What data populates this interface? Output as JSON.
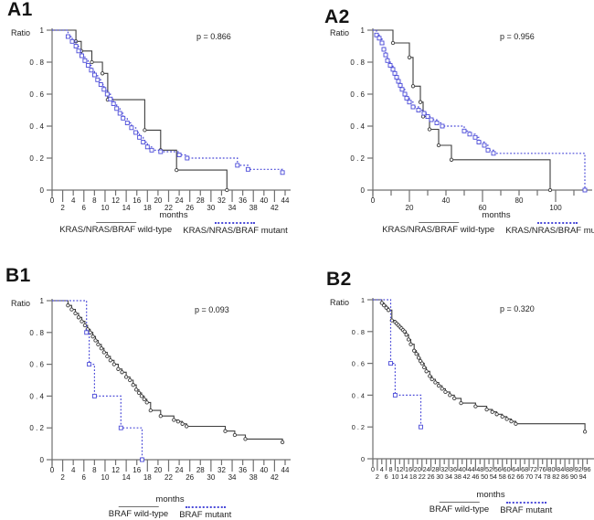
{
  "figure": {
    "background": "#ffffff",
    "curve_black": "#3d3d3d",
    "curve_blue": "#4a4ad8",
    "axis_color": "#707070"
  },
  "chart_data": [
    {
      "type": "line",
      "subtype": "kaplan-meier-step",
      "panel": "A1",
      "p_label": "p = 0.866",
      "ylabel": "Ratio",
      "xlabel": "months",
      "ylim": [
        0,
        1
      ],
      "xlim": [
        0,
        44
      ],
      "grid": false,
      "yticks": [
        {
          "v": 1,
          "label": "1"
        },
        {
          "v": 0.8,
          "label": "0 . 8"
        },
        {
          "v": 0.6,
          "label": "0 . 6"
        },
        {
          "v": 0.4,
          "label": "0 . 4"
        },
        {
          "v": 0.2,
          "label": "0 . 2"
        },
        {
          "v": 0,
          "label": "0"
        }
      ],
      "xticks": {
        "minor_step": 2,
        "minor_max": 44,
        "rows": [
          [
            0,
            4,
            8,
            12,
            16,
            20,
            24,
            28,
            32,
            36,
            40,
            44
          ],
          [
            2,
            6,
            10,
            14,
            18,
            22,
            26,
            30,
            34,
            38,
            42
          ]
        ]
      },
      "legend": [
        {
          "label": "KRAS/NRAS/BRAF wild-type",
          "style": "solid",
          "color": "#6f6f6f"
        },
        {
          "label": "KRAS/NRAS/BRAF mutant",
          "style": "dotted",
          "color": "#4a4ad8"
        }
      ],
      "series": [
        {
          "name": "KRAS/NRAS/BRAF wild-type",
          "style": "solid",
          "color": "#3d3d3d",
          "marker": "circle",
          "points": [
            [
              0,
              1
            ],
            [
              4.5,
              0.93
            ],
            [
              5.5,
              0.87
            ],
            [
              7.5,
              0.8
            ],
            [
              9.5,
              0.73
            ],
            [
              10.5,
              0.565
            ],
            [
              17.5,
              0.375
            ],
            [
              20.5,
              0.25
            ],
            [
              23.5,
              0.125
            ],
            [
              33,
              0
            ]
          ]
        },
        {
          "name": "KRAS/NRAS/BRAF mutant",
          "style": "dotted",
          "color": "#4a4ad8",
          "marker": "square",
          "points": [
            [
              0,
              1
            ],
            [
              3,
              0.96
            ],
            [
              3.8,
              0.93
            ],
            [
              4.5,
              0.9
            ],
            [
              5,
              0.87
            ],
            [
              5.6,
              0.84
            ],
            [
              6.2,
              0.81
            ],
            [
              6.8,
              0.78
            ],
            [
              7.4,
              0.75
            ],
            [
              8,
              0.72
            ],
            [
              8.6,
              0.69
            ],
            [
              9.2,
              0.66
            ],
            [
              9.8,
              0.63
            ],
            [
              10.4,
              0.6
            ],
            [
              11,
              0.57
            ],
            [
              11.6,
              0.54
            ],
            [
              12.2,
              0.51
            ],
            [
              12.8,
              0.48
            ],
            [
              13.4,
              0.45
            ],
            [
              14.2,
              0.42
            ],
            [
              15,
              0.39
            ],
            [
              15.8,
              0.36
            ],
            [
              16.5,
              0.33
            ],
            [
              17.2,
              0.3
            ],
            [
              18,
              0.27
            ],
            [
              18.8,
              0.25
            ],
            [
              20.5,
              0.24
            ],
            [
              24,
              0.22
            ],
            [
              25.5,
              0.2
            ],
            [
              35,
              0.155
            ],
            [
              37,
              0.13
            ],
            [
              43.5,
              0.11
            ]
          ]
        }
      ]
    },
    {
      "type": "line",
      "subtype": "kaplan-meier-step",
      "panel": "A2",
      "p_label": "p = 0.956",
      "ylabel": "Ratio",
      "xlabel": "months",
      "ylim": [
        0,
        1
      ],
      "xlim": [
        0,
        117
      ],
      "grid": false,
      "yticks": [
        {
          "v": 1,
          "label": "1"
        },
        {
          "v": 0.8,
          "label": "0 . 8"
        },
        {
          "v": 0.6,
          "label": "0 . 6"
        },
        {
          "v": 0.4,
          "label": "0 . 4"
        },
        {
          "v": 0.2,
          "label": "0 . 2"
        },
        {
          "v": 0,
          "label": "0"
        }
      ],
      "xticks": {
        "minor_step": 10,
        "minor_max": 110,
        "rows": [
          [
            0,
            40,
            80
          ],
          [
            20,
            60,
            100
          ]
        ]
      },
      "legend": [
        {
          "label": "KRAS/NRAS/BRAF wild-type",
          "style": "solid",
          "color": "#6f6f6f"
        },
        {
          "label": "KRAS/NRAS/BRAF mutant",
          "style": "dotted",
          "color": "#4a4ad8"
        }
      ],
      "series": [
        {
          "name": "KRAS/NRAS/BRAF wild-type",
          "style": "solid",
          "color": "#3d3d3d",
          "marker": "circle",
          "points": [
            [
              0,
              1
            ],
            [
              11,
              0.92
            ],
            [
              20,
              0.83
            ],
            [
              22,
              0.65
            ],
            [
              26,
              0.55
            ],
            [
              27.5,
              0.46
            ],
            [
              31,
              0.38
            ],
            [
              36,
              0.28
            ],
            [
              43,
              0.19
            ],
            [
              97,
              0
            ]
          ]
        },
        {
          "name": "KRAS/NRAS/BRAF mutant",
          "style": "dotted",
          "color": "#4a4ad8",
          "marker": "square",
          "points": [
            [
              0,
              1
            ],
            [
              2,
              0.97
            ],
            [
              3.5,
              0.95
            ],
            [
              5,
              0.92
            ],
            [
              6,
              0.88
            ],
            [
              7,
              0.845
            ],
            [
              8,
              0.81
            ],
            [
              9.5,
              0.78
            ],
            [
              11,
              0.755
            ],
            [
              12,
              0.73
            ],
            [
              13,
              0.705
            ],
            [
              14,
              0.68
            ],
            [
              15,
              0.655
            ],
            [
              16,
              0.63
            ],
            [
              17.5,
              0.6
            ],
            [
              18.5,
              0.575
            ],
            [
              20,
              0.55
            ],
            [
              22,
              0.52
            ],
            [
              25,
              0.5
            ],
            [
              28,
              0.48
            ],
            [
              30,
              0.46
            ],
            [
              32,
              0.44
            ],
            [
              35,
              0.42
            ],
            [
              38,
              0.4
            ],
            [
              50,
              0.37
            ],
            [
              53,
              0.35
            ],
            [
              56,
              0.33
            ],
            [
              58,
              0.3
            ],
            [
              61,
              0.28
            ],
            [
              63,
              0.25
            ],
            [
              66,
              0.23
            ],
            [
              116,
              0
            ]
          ]
        }
      ]
    },
    {
      "type": "line",
      "subtype": "kaplan-meier-step",
      "panel": "B1",
      "p_label": "p = 0.093",
      "ylabel": "Ratio",
      "xlabel": "months",
      "ylim": [
        0,
        1
      ],
      "xlim": [
        0,
        44
      ],
      "grid": false,
      "yticks": [
        {
          "v": 1,
          "label": "1"
        },
        {
          "v": 0.8,
          "label": "0 . 8"
        },
        {
          "v": 0.6,
          "label": "0 . 6"
        },
        {
          "v": 0.4,
          "label": "0 . 4"
        },
        {
          "v": 0.2,
          "label": "0 . 2"
        },
        {
          "v": 0,
          "label": "0"
        }
      ],
      "xticks": {
        "minor_step": 2,
        "minor_max": 44,
        "rows": [
          [
            0,
            4,
            8,
            12,
            16,
            20,
            24,
            28,
            32,
            36,
            40,
            44
          ],
          [
            2,
            6,
            10,
            14,
            18,
            22,
            26,
            30,
            34,
            38,
            42
          ]
        ]
      },
      "legend": [
        {
          "label": "BRAF wild-type",
          "style": "solid",
          "color": "#6f6f6f"
        },
        {
          "label": "BRAF mutant",
          "style": "dotted",
          "color": "#4a4ad8"
        }
      ],
      "series": [
        {
          "name": "BRAF wild-type",
          "style": "solid",
          "color": "#3d3d3d",
          "marker": "circle",
          "points": [
            [
              0,
              1
            ],
            [
              3,
              0.97
            ],
            [
              3.7,
              0.945
            ],
            [
              4.4,
              0.92
            ],
            [
              5,
              0.895
            ],
            [
              5.6,
              0.87
            ],
            [
              6.2,
              0.845
            ],
            [
              6.7,
              0.82
            ],
            [
              7.2,
              0.8
            ],
            [
              7.7,
              0.775
            ],
            [
              8.2,
              0.75
            ],
            [
              8.7,
              0.725
            ],
            [
              9.3,
              0.7
            ],
            [
              9.8,
              0.675
            ],
            [
              10.4,
              0.65
            ],
            [
              11,
              0.625
            ],
            [
              11.7,
              0.6
            ],
            [
              12.5,
              0.57
            ],
            [
              13.2,
              0.55
            ],
            [
              14,
              0.52
            ],
            [
              14.7,
              0.5
            ],
            [
              15.3,
              0.47
            ],
            [
              15.9,
              0.44
            ],
            [
              16.4,
              0.42
            ],
            [
              16.9,
              0.4
            ],
            [
              17.4,
              0.38
            ],
            [
              17.9,
              0.36
            ],
            [
              18.6,
              0.31
            ],
            [
              20.5,
              0.275
            ],
            [
              23,
              0.25
            ],
            [
              23.8,
              0.24
            ],
            [
              24.6,
              0.225
            ],
            [
              25.4,
              0.21
            ],
            [
              32.7,
              0.18
            ],
            [
              34.5,
              0.155
            ],
            [
              36.5,
              0.13
            ],
            [
              43.5,
              0.11
            ]
          ]
        },
        {
          "name": "BRAF mutant",
          "style": "dotted",
          "color": "#4a4ad8",
          "marker": "square",
          "points": [
            [
              0,
              1
            ],
            [
              6.5,
              0.8
            ],
            [
              7,
              0.6
            ],
            [
              8,
              0.4
            ],
            [
              13,
              0.2
            ],
            [
              17,
              0
            ]
          ]
        }
      ]
    },
    {
      "type": "line",
      "subtype": "kaplan-meier-step",
      "panel": "B2",
      "p_label": "p = 0.320",
      "ylabel": "Ratio",
      "xlabel": "months",
      "ylim": [
        0,
        1
      ],
      "xlim": [
        0,
        97
      ],
      "grid": false,
      "yticks": [
        {
          "v": 1,
          "label": "1"
        },
        {
          "v": 0.8,
          "label": "0 . 8"
        },
        {
          "v": 0.6,
          "label": "0 . 6"
        },
        {
          "v": 0.4,
          "label": "0 . 4"
        },
        {
          "v": 0.2,
          "label": "0 . 2"
        },
        {
          "v": 0,
          "label": "0"
        }
      ],
      "xticks": {
        "minor_step": 2,
        "minor_max": 96,
        "rows": [
          [
            0,
            4,
            8,
            12,
            16,
            20,
            24,
            28,
            32,
            36,
            40,
            44,
            48,
            52,
            56,
            60,
            64,
            68,
            72,
            76,
            80,
            84,
            88,
            92,
            96
          ],
          [
            2,
            6,
            10,
            14,
            18,
            22,
            26,
            30,
            34,
            38,
            42,
            46,
            50,
            54,
            58,
            62,
            66,
            70,
            74,
            78,
            82,
            86,
            90,
            94
          ]
        ]
      },
      "legend": [
        {
          "label": "BRAF wild-type",
          "style": "solid",
          "color": "#6f6f6f"
        },
        {
          "label": "BRAF mutant",
          "style": "dotted",
          "color": "#4a4ad8"
        }
      ],
      "series": [
        {
          "name": "BRAF wild-type",
          "style": "solid",
          "color": "#3d3d3d",
          "marker": "circle",
          "points": [
            [
              0,
              1
            ],
            [
              4,
              0.98
            ],
            [
              5,
              0.965
            ],
            [
              6,
              0.95
            ],
            [
              7,
              0.935
            ],
            [
              8.5,
              0.87
            ],
            [
              10,
              0.86
            ],
            [
              10.7,
              0.85
            ],
            [
              11.4,
              0.84
            ],
            [
              12.1,
              0.83
            ],
            [
              12.8,
              0.82
            ],
            [
              13.5,
              0.81
            ],
            [
              14.2,
              0.8
            ],
            [
              15,
              0.78
            ],
            [
              16,
              0.75
            ],
            [
              17,
              0.72
            ],
            [
              18.5,
              0.68
            ],
            [
              19.5,
              0.66
            ],
            [
              20.5,
              0.635
            ],
            [
              21.3,
              0.615
            ],
            [
              22,
              0.6
            ],
            [
              23,
              0.575
            ],
            [
              24,
              0.55
            ],
            [
              25.5,
              0.52
            ],
            [
              26.5,
              0.5
            ],
            [
              28,
              0.48
            ],
            [
              29.5,
              0.46
            ],
            [
              31,
              0.44
            ],
            [
              32.5,
              0.42
            ],
            [
              34.5,
              0.4
            ],
            [
              36.5,
              0.38
            ],
            [
              39.5,
              0.35
            ],
            [
              46,
              0.33
            ],
            [
              51,
              0.31
            ],
            [
              53.5,
              0.295
            ],
            [
              55.5,
              0.28
            ],
            [
              58,
              0.265
            ],
            [
              60,
              0.25
            ],
            [
              62,
              0.235
            ],
            [
              64,
              0.22
            ],
            [
              95,
              0.17
            ]
          ]
        },
        {
          "name": "BRAF mutant",
          "style": "dotted",
          "color": "#4a4ad8",
          "marker": "square",
          "points": [
            [
              0,
              1
            ],
            [
              8,
              0.6
            ],
            [
              10,
              0.4
            ],
            [
              21.5,
              0.2
            ]
          ]
        }
      ]
    }
  ]
}
